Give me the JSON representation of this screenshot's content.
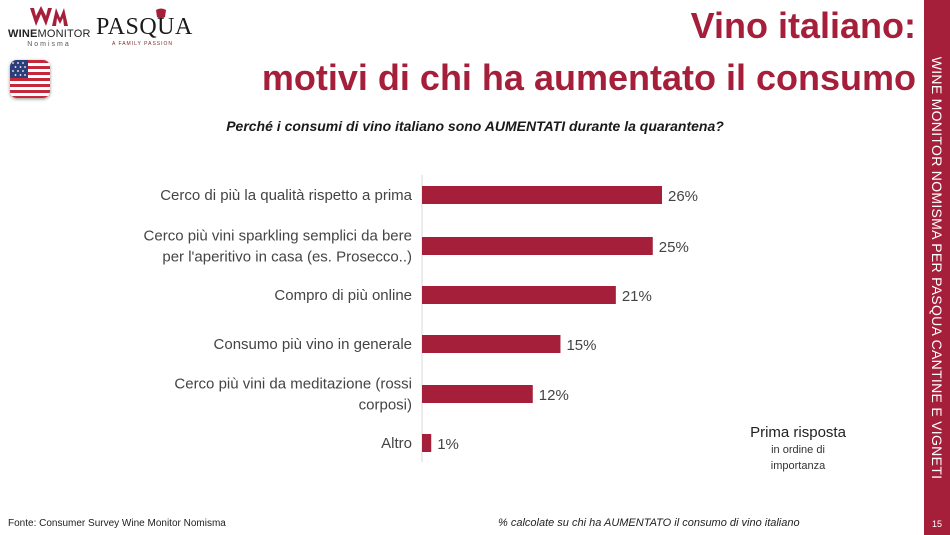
{
  "logos": {
    "winemonitor": {
      "brand_bold": "WINE",
      "brand_thin": "MONITOR",
      "sub": "Nomisma"
    },
    "pasqua": {
      "name": "PASQUA",
      "tagline": "A FAMILY PASSION"
    }
  },
  "flag": {
    "country": "United States",
    "icon": "us-flag-icon"
  },
  "title": {
    "line1": "Vino italiano:",
    "line2": "motivi di chi ha aumentato il consumo"
  },
  "question": "Perché i consumi di vino italiano sono AUMENTATI durante la quarantena?",
  "side_label": "WINE MONITOR NOMISMA PER PASQUA CANTINE E VIGNETI",
  "page_number": "15",
  "note": {
    "title": "Prima risposta",
    "subtitle": [
      "in ordine di",
      "importanza"
    ]
  },
  "source": "Fonte: Consumer Survey Wine Monitor Nomisma",
  "footnote": "% calcolate su chi ha AUMENTATO il consumo di vino italiano",
  "colors": {
    "accent": "#a51f3b",
    "text": "#333333"
  },
  "chart_data": {
    "type": "bar",
    "orientation": "horizontal",
    "categories": [
      [
        "Cerco di più la qualità rispetto a prima"
      ],
      [
        "Cerco più vini sparkling semplici da bere",
        "per l'aperitivo in casa (es. Prosecco..)"
      ],
      [
        "Compro di più online"
      ],
      [
        "Consumo più vino in generale"
      ],
      [
        "Cerco più vini da meditazione (rossi",
        "corposi)"
      ],
      [
        "Altro"
      ]
    ],
    "values": [
      26,
      25,
      21,
      15,
      12,
      1
    ],
    "value_labels": [
      "26%",
      "25%",
      "21%",
      "15%",
      "12%",
      "1%"
    ],
    "unit": "%",
    "xlim": [
      0,
      30
    ],
    "grid": false,
    "legend": "none",
    "bar_color": "#a51f3b"
  }
}
